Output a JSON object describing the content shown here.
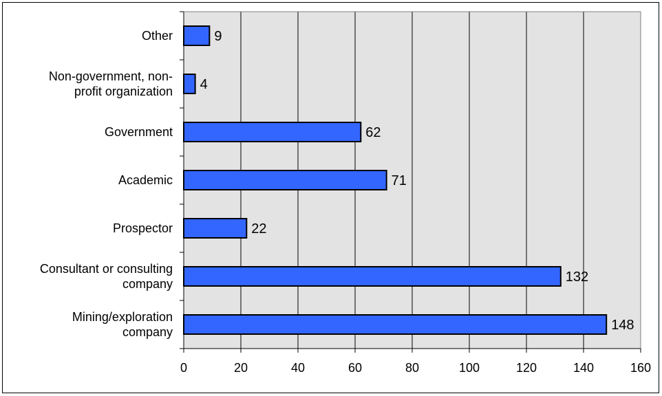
{
  "chart_data": {
    "type": "bar",
    "orientation": "horizontal",
    "title": "",
    "xlabel": "",
    "ylabel": "",
    "categories": [
      [
        "Other"
      ],
      [
        "Non-government, non-",
        "profit organization"
      ],
      [
        "Government"
      ],
      [
        "Academic"
      ],
      [
        "Prospector"
      ],
      [
        "Consultant or consulting",
        "company"
      ],
      [
        "Mining/exploration",
        "company"
      ]
    ],
    "values": [
      9,
      4,
      62,
      71,
      22,
      132,
      148
    ],
    "xlim": [
      0,
      160
    ],
    "xticks": [
      0,
      20,
      40,
      60,
      80,
      100,
      120,
      140,
      160
    ],
    "grid": "vertical",
    "legend": "none",
    "colors": {
      "bar_fill": "#3366FF",
      "bar_stroke": "#000000",
      "plot_background": "#E3E3E3",
      "gridline": "#000000"
    }
  }
}
